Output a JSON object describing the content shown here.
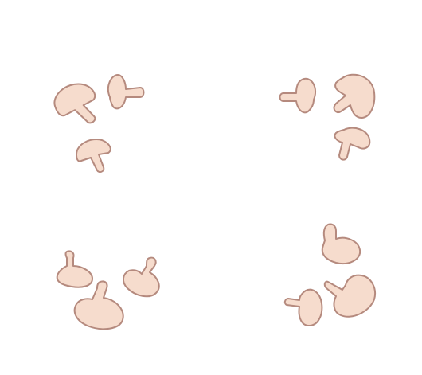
{
  "scene": {
    "description_label": "",
    "fill_color": "#f6dccd",
    "stroke_color": "#b58a7e",
    "background_color": "#ffffff",
    "groups": [
      {
        "id": "top-left",
        "mushroom_count": 3
      },
      {
        "id": "top-right",
        "mushroom_count": 3
      },
      {
        "id": "bottom-left",
        "mushroom_count": 3
      },
      {
        "id": "bottom-right",
        "mushroom_count": 3
      }
    ]
  }
}
